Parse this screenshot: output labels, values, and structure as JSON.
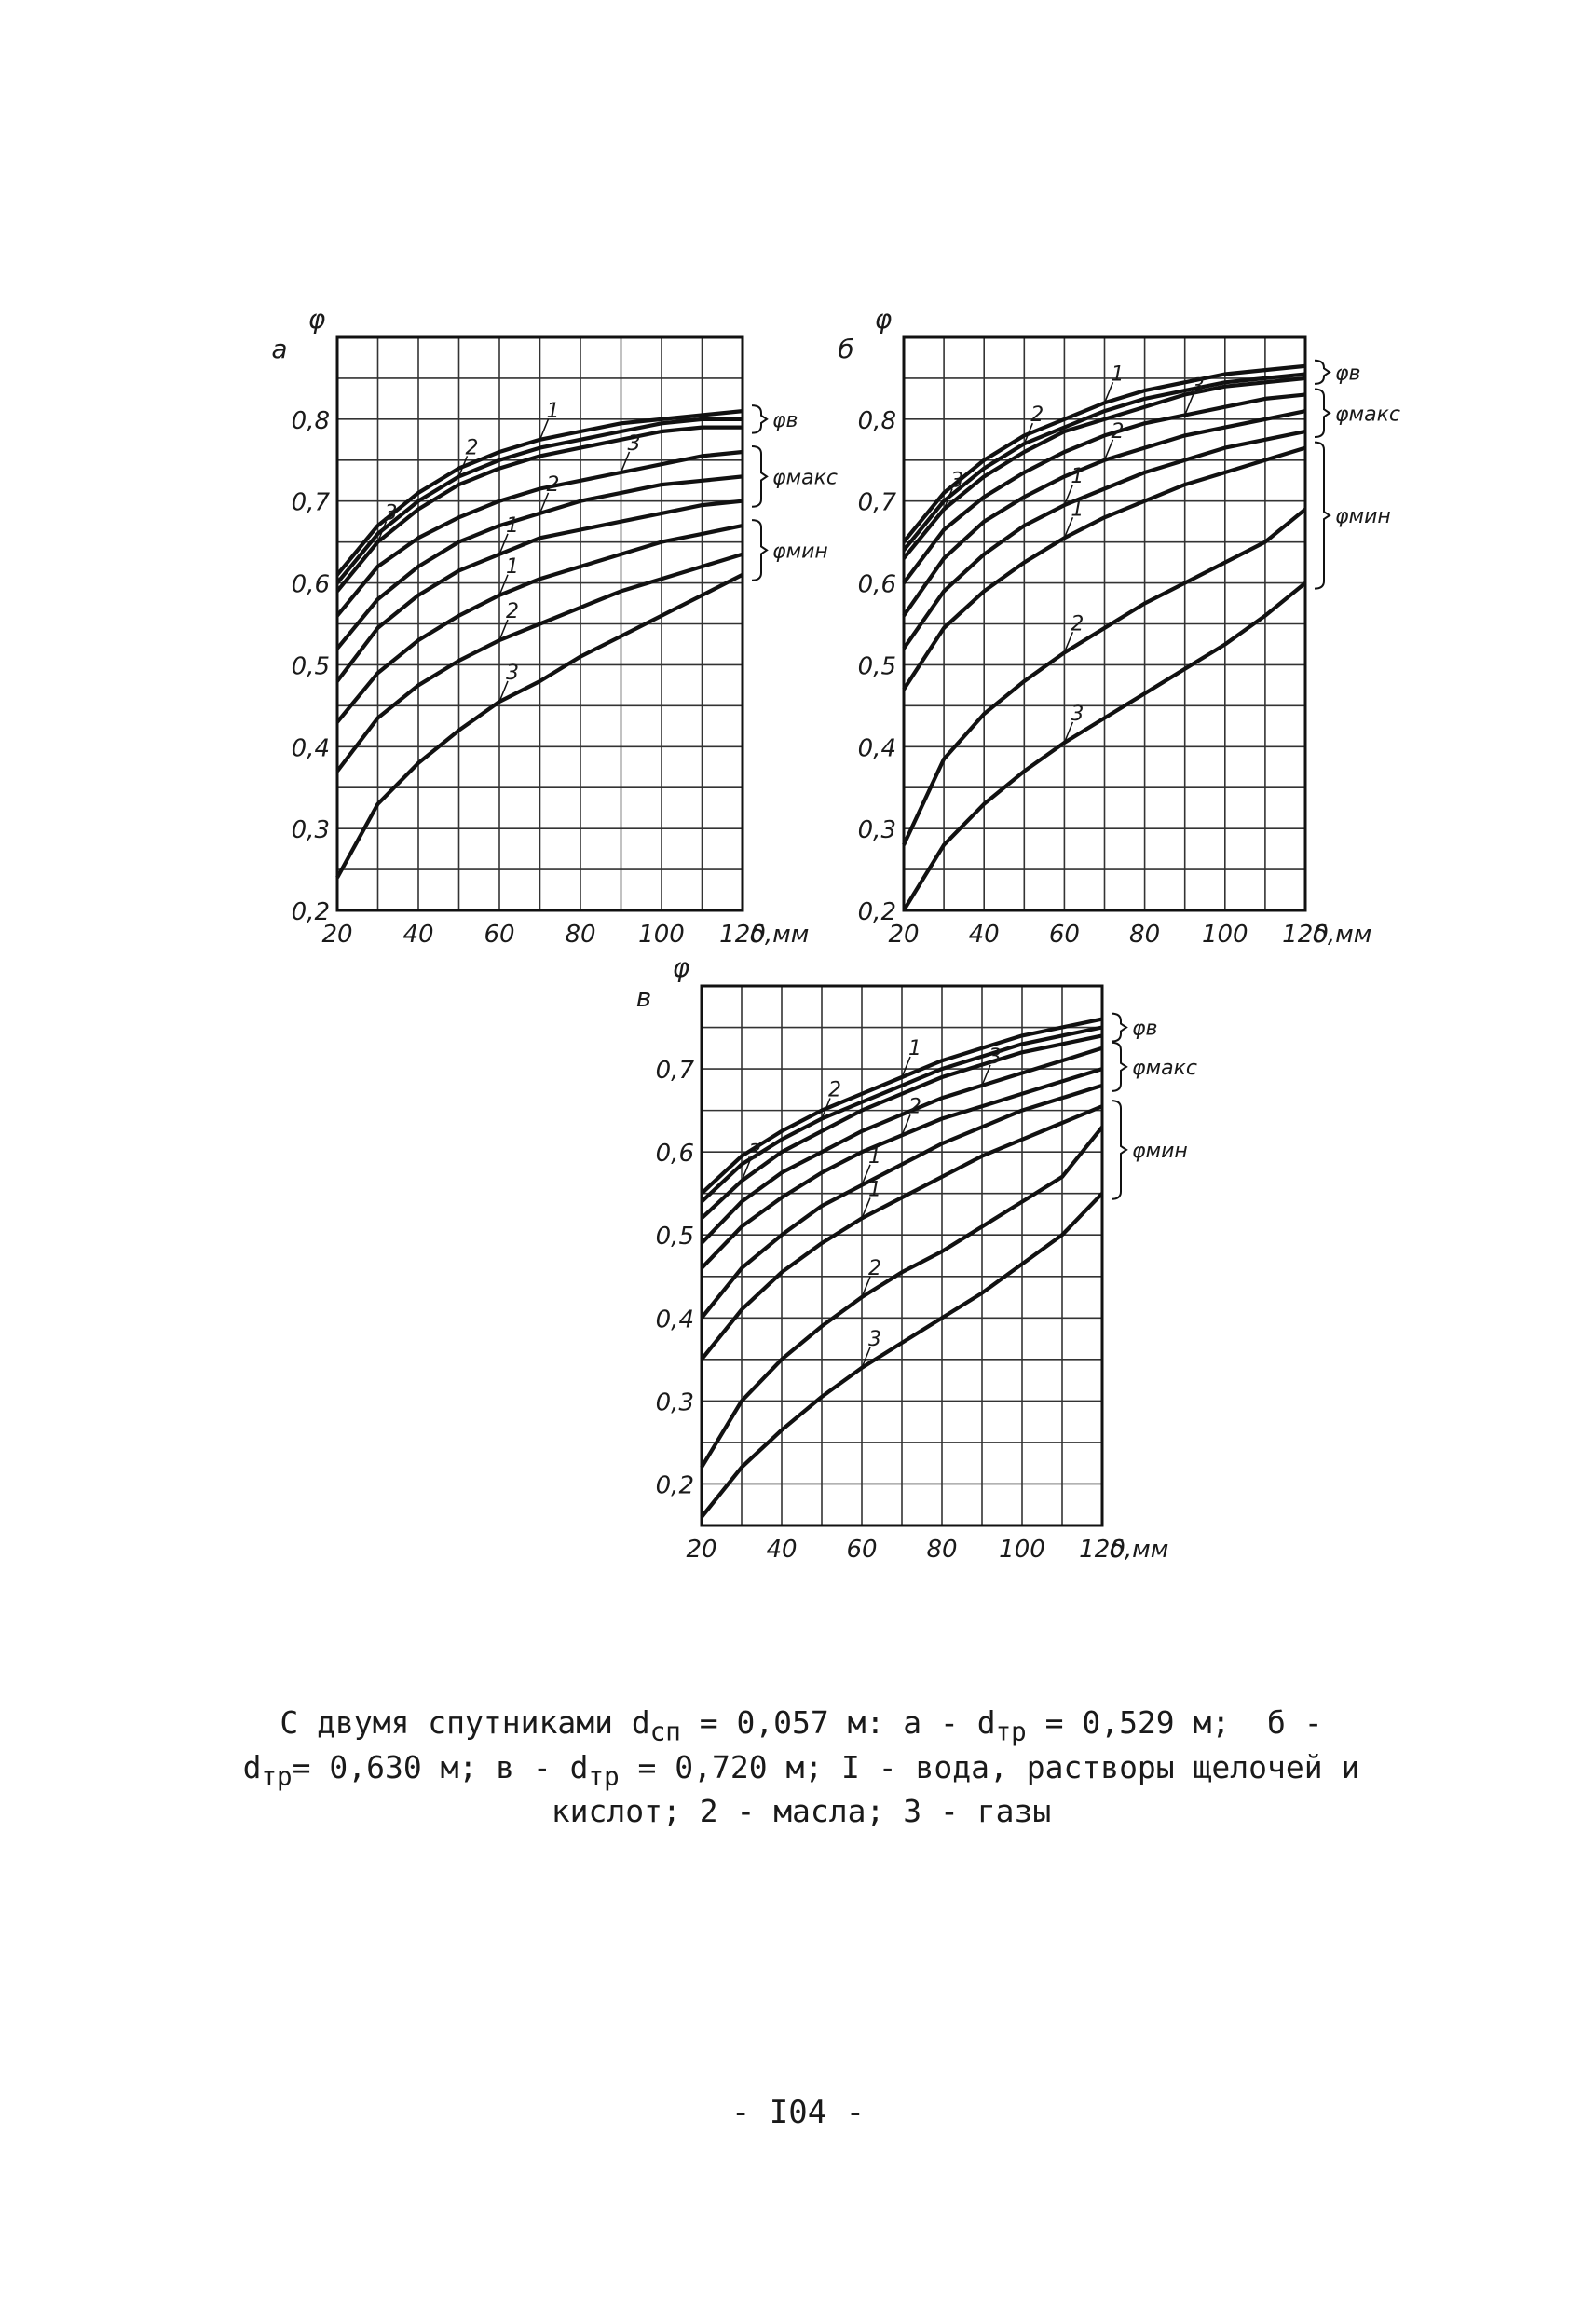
{
  "chart_data": [
    {
      "type": "line",
      "panel_label": "а",
      "ylabel": "φ",
      "xlabel": "δ,мм",
      "xlim": [
        20,
        120
      ],
      "ylim": [
        0.2,
        0.9
      ],
      "x_ticks": [
        "20",
        "40",
        "60",
        "80",
        "100",
        "120"
      ],
      "y_ticks": [
        "0,2",
        "0,3",
        "0,4",
        "0,5",
        "0,6",
        "0,7",
        "0,8"
      ],
      "group_labels": [
        "φв",
        "φмакс",
        "φмин"
      ],
      "series": [
        {
          "name": "1",
          "group": "φв",
          "x": [
            20,
            30,
            40,
            50,
            60,
            70,
            80,
            90,
            100,
            110,
            120
          ],
          "values": [
            0.61,
            0.67,
            0.71,
            0.74,
            0.76,
            0.775,
            0.785,
            0.795,
            0.8,
            0.805,
            0.81
          ]
        },
        {
          "name": "2",
          "group": "φв",
          "x": [
            20,
            30,
            40,
            50,
            60,
            70,
            80,
            90,
            100,
            110,
            120
          ],
          "values": [
            0.6,
            0.66,
            0.7,
            0.73,
            0.75,
            0.765,
            0.775,
            0.785,
            0.795,
            0.8,
            0.8
          ]
        },
        {
          "name": "3",
          "group": "φв",
          "x": [
            20,
            30,
            40,
            50,
            60,
            70,
            80,
            90,
            100,
            110,
            120
          ],
          "values": [
            0.59,
            0.65,
            0.69,
            0.72,
            0.74,
            0.755,
            0.765,
            0.775,
            0.785,
            0.79,
            0.79
          ]
        },
        {
          "name": "3",
          "group": "φмакс",
          "x": [
            20,
            30,
            40,
            50,
            60,
            70,
            80,
            90,
            100,
            110,
            120
          ],
          "values": [
            0.56,
            0.62,
            0.655,
            0.68,
            0.7,
            0.715,
            0.725,
            0.735,
            0.745,
            0.755,
            0.76
          ]
        },
        {
          "name": "2",
          "group": "φмакс",
          "x": [
            20,
            30,
            40,
            50,
            60,
            70,
            80,
            90,
            100,
            110,
            120
          ],
          "values": [
            0.52,
            0.58,
            0.62,
            0.65,
            0.67,
            0.685,
            0.7,
            0.71,
            0.72,
            0.725,
            0.73
          ]
        },
        {
          "name": "1",
          "group": "φмакс",
          "x": [
            20,
            30,
            40,
            50,
            60,
            70,
            80,
            90,
            100,
            110,
            120
          ],
          "values": [
            0.48,
            0.545,
            0.585,
            0.615,
            0.635,
            0.655,
            0.665,
            0.675,
            0.685,
            0.695,
            0.7
          ]
        },
        {
          "name": "1",
          "group": "φмин",
          "x": [
            20,
            30,
            40,
            50,
            60,
            70,
            80,
            90,
            100,
            110,
            120
          ],
          "values": [
            0.43,
            0.49,
            0.53,
            0.56,
            0.585,
            0.605,
            0.62,
            0.635,
            0.65,
            0.66,
            0.67
          ]
        },
        {
          "name": "2",
          "group": "φмин",
          "x": [
            20,
            30,
            40,
            50,
            60,
            70,
            80,
            90,
            100,
            110,
            120
          ],
          "values": [
            0.37,
            0.435,
            0.475,
            0.505,
            0.53,
            0.55,
            0.57,
            0.59,
            0.605,
            0.62,
            0.635
          ]
        },
        {
          "name": "3",
          "group": "φмин",
          "x": [
            20,
            30,
            40,
            50,
            60,
            70,
            80,
            90,
            100,
            110,
            120
          ],
          "values": [
            0.24,
            0.33,
            0.38,
            0.42,
            0.455,
            0.48,
            0.51,
            0.535,
            0.56,
            0.585,
            0.61
          ]
        }
      ]
    },
    {
      "type": "line",
      "panel_label": "б",
      "ylabel": "φ",
      "xlabel": "δ,мм",
      "xlim": [
        20,
        120
      ],
      "ylim": [
        0.2,
        0.9
      ],
      "x_ticks": [
        "20",
        "40",
        "60",
        "80",
        "100",
        "120"
      ],
      "y_ticks": [
        "0,2",
        "0,3",
        "0,4",
        "0,5",
        "0,6",
        "0,7",
        "0,8"
      ],
      "group_labels": [
        "φв",
        "φмакс",
        "φмин"
      ],
      "series": [
        {
          "name": "1",
          "group": "φв",
          "x": [
            20,
            30,
            40,
            50,
            60,
            70,
            80,
            90,
            100,
            110,
            120
          ],
          "values": [
            0.65,
            0.71,
            0.75,
            0.78,
            0.8,
            0.82,
            0.835,
            0.845,
            0.855,
            0.86,
            0.865
          ]
        },
        {
          "name": "2",
          "group": "φв",
          "x": [
            20,
            30,
            40,
            50,
            60,
            70,
            80,
            90,
            100,
            110,
            120
          ],
          "values": [
            0.64,
            0.7,
            0.74,
            0.77,
            0.79,
            0.81,
            0.825,
            0.835,
            0.845,
            0.85,
            0.855
          ]
        },
        {
          "name": "3",
          "group": "φв",
          "x": [
            20,
            30,
            40,
            50,
            60,
            70,
            80,
            90,
            100,
            110,
            120
          ],
          "values": [
            0.63,
            0.69,
            0.73,
            0.76,
            0.785,
            0.8,
            0.815,
            0.83,
            0.84,
            0.845,
            0.85
          ]
        },
        {
          "name": "3",
          "group": "φмакс",
          "x": [
            20,
            30,
            40,
            50,
            60,
            70,
            80,
            90,
            100,
            110,
            120
          ],
          "values": [
            0.6,
            0.665,
            0.705,
            0.735,
            0.76,
            0.78,
            0.795,
            0.805,
            0.815,
            0.825,
            0.83
          ]
        },
        {
          "name": "2",
          "group": "φмакс",
          "x": [
            20,
            30,
            40,
            50,
            60,
            70,
            80,
            90,
            100,
            110,
            120
          ],
          "values": [
            0.56,
            0.63,
            0.675,
            0.705,
            0.73,
            0.75,
            0.765,
            0.78,
            0.79,
            0.8,
            0.81
          ]
        },
        {
          "name": "1",
          "group": "φмакс",
          "x": [
            20,
            30,
            40,
            50,
            60,
            70,
            80,
            90,
            100,
            110,
            120
          ],
          "values": [
            0.52,
            0.59,
            0.635,
            0.67,
            0.695,
            0.715,
            0.735,
            0.75,
            0.765,
            0.775,
            0.785
          ]
        },
        {
          "name": "1",
          "group": "φмин",
          "x": [
            20,
            30,
            40,
            50,
            60,
            70,
            80,
            90,
            100,
            110,
            120
          ],
          "values": [
            0.47,
            0.545,
            0.59,
            0.625,
            0.655,
            0.68,
            0.7,
            0.72,
            0.735,
            0.75,
            0.765
          ]
        },
        {
          "name": "2",
          "group": "φмин",
          "x": [
            20,
            30,
            40,
            50,
            60,
            70,
            80,
            90,
            100,
            110,
            120
          ],
          "values": [
            0.28,
            0.385,
            0.44,
            0.48,
            0.515,
            0.545,
            0.575,
            0.6,
            0.625,
            0.65,
            0.69
          ]
        },
        {
          "name": "3",
          "group": "φмин",
          "x": [
            20,
            30,
            40,
            50,
            60,
            70,
            80,
            90,
            100,
            110,
            120
          ],
          "values": [
            0.2,
            0.28,
            0.33,
            0.37,
            0.405,
            0.435,
            0.465,
            0.495,
            0.525,
            0.56,
            0.6
          ]
        }
      ]
    },
    {
      "type": "line",
      "panel_label": "в",
      "ylabel": "φ",
      "xlabel": "δ,мм",
      "xlim": [
        20,
        120
      ],
      "ylim": [
        0.15,
        0.8
      ],
      "x_ticks": [
        "20",
        "40",
        "60",
        "80",
        "100",
        "120"
      ],
      "y_ticks": [
        "0,2",
        "0,3",
        "0,4",
        "0,5",
        "0,6",
        "0,7"
      ],
      "group_labels": [
        "φв",
        "φмакс",
        "φмин"
      ],
      "series": [
        {
          "name": "1",
          "group": "φв",
          "x": [
            20,
            30,
            40,
            50,
            60,
            70,
            80,
            90,
            100,
            110,
            120
          ],
          "values": [
            0.55,
            0.595,
            0.625,
            0.65,
            0.67,
            0.69,
            0.71,
            0.725,
            0.74,
            0.75,
            0.76
          ]
        },
        {
          "name": "2",
          "group": "φв",
          "x": [
            20,
            30,
            40,
            50,
            60,
            70,
            80,
            90,
            100,
            110,
            120
          ],
          "values": [
            0.54,
            0.585,
            0.615,
            0.64,
            0.66,
            0.68,
            0.7,
            0.715,
            0.73,
            0.74,
            0.75
          ]
        },
        {
          "name": "3",
          "group": "φв",
          "x": [
            20,
            30,
            40,
            50,
            60,
            70,
            80,
            90,
            100,
            110,
            120
          ],
          "values": [
            0.52,
            0.565,
            0.6,
            0.625,
            0.65,
            0.67,
            0.69,
            0.705,
            0.72,
            0.73,
            0.74
          ]
        },
        {
          "name": "3",
          "group": "φмакс",
          "x": [
            20,
            30,
            40,
            50,
            60,
            70,
            80,
            90,
            100,
            110,
            120
          ],
          "values": [
            0.49,
            0.54,
            0.575,
            0.6,
            0.625,
            0.645,
            0.665,
            0.68,
            0.695,
            0.71,
            0.725
          ]
        },
        {
          "name": "2",
          "group": "φмакс",
          "x": [
            20,
            30,
            40,
            50,
            60,
            70,
            80,
            90,
            100,
            110,
            120
          ],
          "values": [
            0.46,
            0.51,
            0.545,
            0.575,
            0.6,
            0.62,
            0.64,
            0.655,
            0.67,
            0.685,
            0.7
          ]
        },
        {
          "name": "1",
          "group": "φмакс",
          "x": [
            20,
            30,
            40,
            50,
            60,
            70,
            80,
            90,
            100,
            110,
            120
          ],
          "values": [
            0.4,
            0.46,
            0.5,
            0.535,
            0.56,
            0.585,
            0.61,
            0.63,
            0.65,
            0.665,
            0.68
          ]
        },
        {
          "name": "1",
          "group": "φмин",
          "x": [
            20,
            30,
            40,
            50,
            60,
            70,
            80,
            90,
            100,
            110,
            120
          ],
          "values": [
            0.35,
            0.41,
            0.455,
            0.49,
            0.52,
            0.545,
            0.57,
            0.595,
            0.615,
            0.635,
            0.655
          ]
        },
        {
          "name": "2",
          "group": "φмин",
          "x": [
            20,
            30,
            40,
            50,
            60,
            70,
            80,
            90,
            100,
            110,
            120
          ],
          "values": [
            0.22,
            0.3,
            0.35,
            0.39,
            0.425,
            0.455,
            0.48,
            0.51,
            0.54,
            0.57,
            0.63
          ]
        },
        {
          "name": "3",
          "group": "φмин",
          "x": [
            20,
            30,
            40,
            50,
            60,
            70,
            80,
            90,
            100,
            110,
            120
          ],
          "values": [
            0.16,
            0.22,
            0.265,
            0.305,
            0.34,
            0.37,
            0.4,
            0.43,
            0.465,
            0.5,
            0.55
          ]
        }
      ]
    }
  ],
  "caption": {
    "line1": "С двумя спутниками d",
    "line1_sub1": "сп",
    "line1_b": " = 0,057 м: а - d",
    "line1_sub2": "тр",
    "line1_c": " = 0,529 м;  б -",
    "line2_a": "d",
    "line2_sub1": "тр",
    "line2_b": "= 0,630 м; в - d",
    "line2_sub2": "тр",
    "line2_c": " = 0,720 м; I - вода, растворы щелочей и",
    "line3": "кислот; 2 - масла; 3 - газы"
  },
  "page_number": "- I04 -"
}
